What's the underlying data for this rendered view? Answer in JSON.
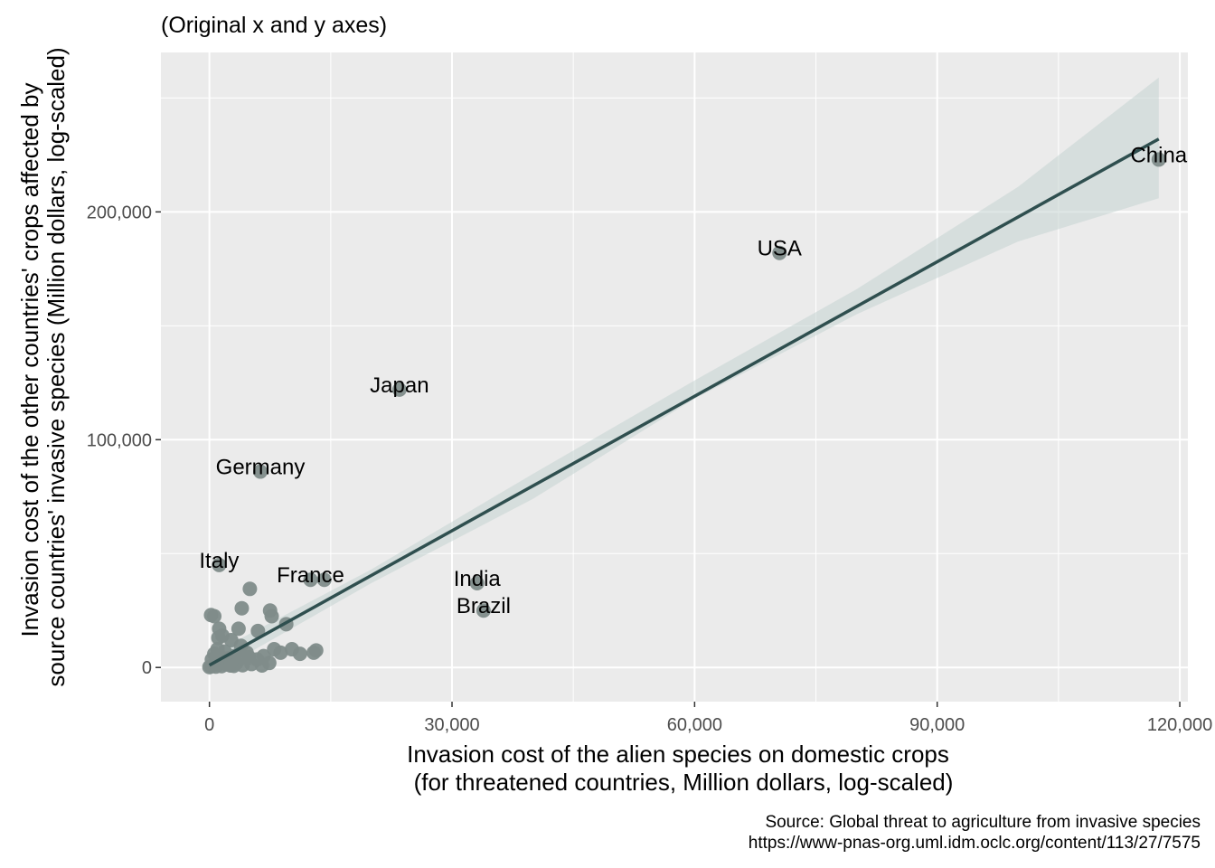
{
  "chart_data": {
    "type": "scatter",
    "title": "(Original x and y axes)",
    "xlabel": [
      "Invasion cost of the alien species on domestic crops",
      "(for threatened countries, Million dollars, log-scaled)"
    ],
    "ylabel": [
      "Invasion cost of the other countries' crops affected by",
      "source countries' invasive species (Million dollars, log-scaled)"
    ],
    "caption": [
      "Source: Global threat to agriculture from invasive species",
      "https://www-pnas-org.uml.idm.oclc.org/content/113/27/7575"
    ],
    "xlim": [
      -6000,
      121000
    ],
    "ylim": [
      -15000,
      270000
    ],
    "x_ticks": [
      0,
      30000,
      60000,
      90000,
      120000
    ],
    "x_tick_labels": [
      "0",
      "30,000",
      "60,000",
      "90,000",
      "120,000"
    ],
    "y_ticks": [
      0,
      100000,
      200000
    ],
    "y_tick_labels": [
      "0",
      "100,000",
      "200,000"
    ],
    "grid": true,
    "colors": {
      "panel": "#ebebeb",
      "grid": "#ffffff",
      "points": "#7f8c8a",
      "line": "#2f4f4f",
      "ribbon": "#c5d4d2"
    },
    "labeled_points": [
      {
        "label": "China",
        "x": 117400,
        "y": 223000
      },
      {
        "label": "USA",
        "x": 70500,
        "y": 182000
      },
      {
        "label": "Japan",
        "x": 23500,
        "y": 122000
      },
      {
        "label": "Germany",
        "x": 6300,
        "y": 86000
      },
      {
        "label": "Italy",
        "x": 1200,
        "y": 45000
      },
      {
        "label": "France",
        "x": 12500,
        "y": 38500
      },
      {
        "label": "India",
        "x": 33100,
        "y": 37000
      },
      {
        "label": "Brazil",
        "x": 33900,
        "y": 25000
      }
    ],
    "points": [
      {
        "x": 14200,
        "y": 38500
      },
      {
        "x": 5000,
        "y": 34500
      },
      {
        "x": 4000,
        "y": 26000
      },
      {
        "x": 7500,
        "y": 25000
      },
      {
        "x": 7700,
        "y": 22500
      },
      {
        "x": 200,
        "y": 23000
      },
      {
        "x": 600,
        "y": 22500
      },
      {
        "x": 6000,
        "y": 16000
      },
      {
        "x": 3600,
        "y": 17000
      },
      {
        "x": 9500,
        "y": 19000
      },
      {
        "x": 1200,
        "y": 17000
      },
      {
        "x": 1600,
        "y": 14000
      },
      {
        "x": 1100,
        "y": 13000
      },
      {
        "x": 2700,
        "y": 12000
      },
      {
        "x": 3900,
        "y": 9500
      },
      {
        "x": 8000,
        "y": 8000
      },
      {
        "x": 8800,
        "y": 6500
      },
      {
        "x": 10200,
        "y": 8000
      },
      {
        "x": 11200,
        "y": 6000
      },
      {
        "x": 12900,
        "y": 6500
      },
      {
        "x": 13200,
        "y": 7500
      },
      {
        "x": 6700,
        "y": 5000
      },
      {
        "x": 5900,
        "y": 3500
      },
      {
        "x": 7400,
        "y": 2000
      },
      {
        "x": 5200,
        "y": 1500
      },
      {
        "x": 4600,
        "y": 6500
      },
      {
        "x": 3100,
        "y": 5000
      },
      {
        "x": 2300,
        "y": 4000
      },
      {
        "x": 1800,
        "y": 3000
      },
      {
        "x": 1400,
        "y": 2000
      },
      {
        "x": 900,
        "y": 1500
      },
      {
        "x": 500,
        "y": 1000
      },
      {
        "x": 200,
        "y": 500
      },
      {
        "x": 0,
        "y": 200
      },
      {
        "x": 2600,
        "y": 900
      },
      {
        "x": 3300,
        "y": 1800
      },
      {
        "x": 4100,
        "y": 1000
      },
      {
        "x": 4900,
        "y": 4500
      },
      {
        "x": 1900,
        "y": 7000
      },
      {
        "x": 1000,
        "y": 8000
      },
      {
        "x": 600,
        "y": 6000
      },
      {
        "x": 300,
        "y": 3500
      },
      {
        "x": 1200,
        "y": 5200
      },
      {
        "x": 2700,
        "y": 2600
      },
      {
        "x": 3700,
        "y": 3600
      },
      {
        "x": 6500,
        "y": 900
      },
      {
        "x": 1500,
        "y": 600
      },
      {
        "x": 800,
        "y": 400
      },
      {
        "x": 2200,
        "y": 1300
      },
      {
        "x": 3000,
        "y": 700
      }
    ],
    "fit_line": [
      {
        "x": 0,
        "y": 1000
      },
      {
        "x": 117400,
        "y": 232000
      }
    ],
    "confidence_band": {
      "x": [
        0,
        20000,
        40000,
        60000,
        80000,
        100000,
        117400
      ],
      "upper": [
        5500,
        43000,
        85000,
        126000,
        166000,
        211000,
        259000
      ],
      "lower": [
        -3500,
        37000,
        74000,
        118000,
        155000,
        187000,
        206000
      ]
    }
  }
}
